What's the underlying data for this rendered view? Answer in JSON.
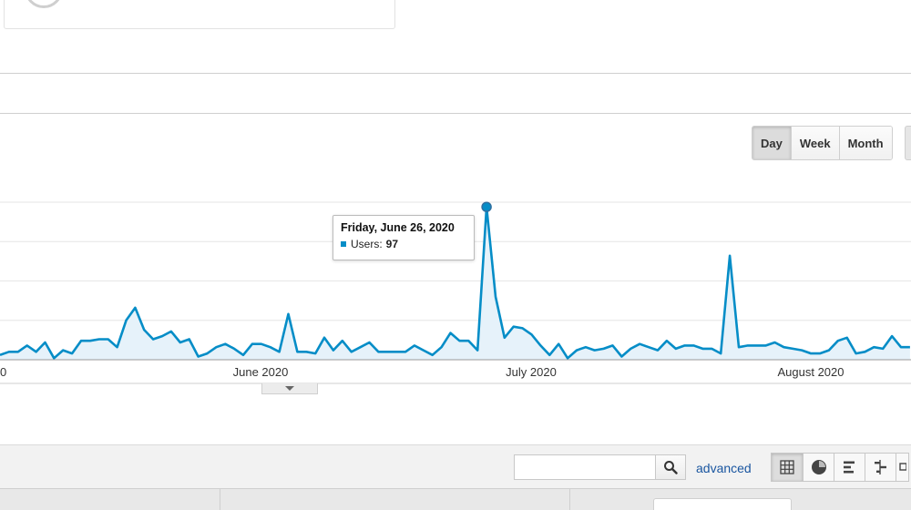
{
  "period_selector": {
    "day": "Day",
    "week": "Week",
    "month": "Month",
    "selected": "Day"
  },
  "tooltip": {
    "date": "Friday, June 26, 2020",
    "metric": "Users:",
    "value": "97"
  },
  "table_toolbar": {
    "search_value": "",
    "search_placeholder": "",
    "advanced_label": "advanced",
    "views": [
      "table-icon",
      "pie-chart-icon",
      "bar-chart-icon",
      "comparison-icon",
      "pivot-icon"
    ]
  },
  "colors": {
    "series": "#058dc7",
    "area_fill": "#e6f2fa"
  },
  "chart_data": {
    "type": "area",
    "x_tick_labels": [
      "0",
      "June 2020",
      "July 2020",
      "August 2020"
    ],
    "series": [
      {
        "name": "Users",
        "values": [
          3,
          5,
          5,
          9,
          5,
          11,
          1,
          6,
          4,
          12,
          12,
          13,
          13,
          8,
          25,
          33,
          19,
          13,
          15,
          18,
          11,
          13,
          2,
          4,
          8,
          10,
          7,
          3,
          10,
          10,
          8,
          5,
          29,
          5,
          5,
          4,
          14,
          6,
          12,
          5,
          8,
          11,
          5,
          5,
          5,
          5,
          9,
          6,
          3,
          8,
          17,
          12,
          12,
          6,
          97,
          40,
          14,
          21,
          20,
          16,
          9,
          3,
          10,
          1,
          6,
          8,
          6,
          7,
          9,
          2,
          7,
          10,
          8,
          6,
          12,
          7,
          9,
          9,
          7,
          7,
          4,
          66,
          8,
          9,
          9,
          9,
          11,
          8,
          7,
          6,
          4,
          4,
          6,
          12,
          14,
          4,
          5,
          8,
          7,
          15,
          8,
          8
        ]
      }
    ],
    "highlight": {
      "date": "Friday, June 26, 2020",
      "value": 97
    },
    "ylim": [
      0,
      100
    ],
    "grid": true
  }
}
